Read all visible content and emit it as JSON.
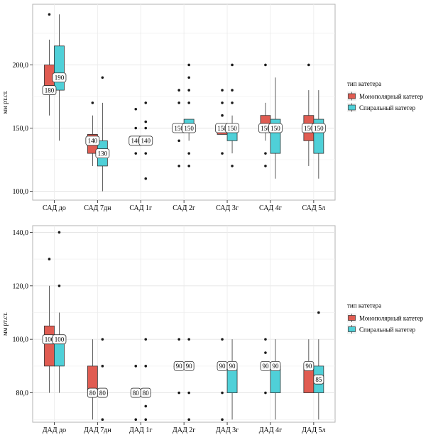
{
  "chart_data": [
    {
      "type": "boxplot",
      "ylabel": "мм рт.ст.",
      "ylim": [
        93,
        248
      ],
      "yticks": [
        100,
        150,
        200
      ],
      "tick_labels": [
        "100,0",
        "150,0",
        "200,0"
      ],
      "categories": [
        "САД до",
        "САД 7дн",
        "САД 1г",
        "САД 2г",
        "САД 3г",
        "САД 4г",
        "САД 5л"
      ],
      "legend": {
        "title": "тип катетера",
        "position": "right"
      },
      "grid": true,
      "series": [
        {
          "name": "Монополярный катетер",
          "color": "#e05c52",
          "boxes": [
            {
              "q1": 180,
              "median": 180,
              "q3": 200,
              "lo": 160,
              "hi": 220,
              "label": "180",
              "outliers": [
                240
              ]
            },
            {
              "q1": 130,
              "median": 140,
              "q3": 145,
              "lo": 120,
              "hi": 160,
              "label": "140",
              "outliers": [
                170
              ]
            },
            {
              "q1": 140,
              "median": 140,
              "q3": 140,
              "lo": 140,
              "hi": 140,
              "label": "140",
              "outliers": [
                130,
                150,
                165
              ]
            },
            {
              "q1": 150,
              "median": 150,
              "q3": 150,
              "lo": 150,
              "hi": 150,
              "label": "150",
              "outliers": [
                120,
                140,
                170,
                180
              ]
            },
            {
              "q1": 145,
              "median": 150,
              "q3": 150,
              "lo": 145,
              "hi": 150,
              "label": "150",
              "outliers": [
                130,
                160,
                170,
                180
              ]
            },
            {
              "q1": 150,
              "median": 150,
              "q3": 160,
              "lo": 140,
              "hi": 170,
              "label": "150",
              "outliers": [
                120,
                130,
                200
              ]
            },
            {
              "q1": 140,
              "median": 150,
              "q3": 160,
              "lo": 120,
              "hi": 180,
              "label": "150",
              "outliers": [
                200
              ]
            }
          ]
        },
        {
          "name": "Спиральный катетер",
          "color": "#4fd0d8",
          "boxes": [
            {
              "q1": 180,
              "median": 190,
              "q3": 215,
              "lo": 140,
              "hi": 240,
              "label": "190",
              "outliers": []
            },
            {
              "q1": 120,
              "median": 130,
              "q3": 140,
              "lo": 100,
              "hi": 170,
              "label": "130",
              "outliers": [
                190
              ]
            },
            {
              "q1": 140,
              "median": 140,
              "q3": 140,
              "lo": 140,
              "hi": 140,
              "label": "140",
              "outliers": [
                110,
                130,
                150,
                155,
                170
              ]
            },
            {
              "q1": 150,
              "median": 150,
              "q3": 157,
              "lo": 140,
              "hi": 157,
              "label": "150",
              "outliers": [
                120,
                130,
                170,
                180,
                190,
                200
              ]
            },
            {
              "q1": 140,
              "median": 150,
              "q3": 150,
              "lo": 130,
              "hi": 160,
              "label": "150",
              "outliers": [
                120,
                170,
                180,
                200
              ]
            },
            {
              "q1": 130,
              "median": 150,
              "q3": 157,
              "lo": 110,
              "hi": 190,
              "label": "150",
              "outliers": []
            },
            {
              "q1": 130,
              "median": 150,
              "q3": 157,
              "lo": 110,
              "hi": 180,
              "label": "150",
              "outliers": []
            }
          ]
        }
      ]
    },
    {
      "type": "boxplot",
      "ylabel": "мм рт.ст.",
      "ylim": [
        69,
        142.5
      ],
      "yticks": [
        80,
        100,
        120,
        140
      ],
      "tick_labels": [
        "80,0",
        "100,0",
        "120,0",
        "140,0"
      ],
      "categories": [
        "ДАД до",
        "ДАД 7дн",
        "ДАД 1г",
        "ДАД 2г",
        "ДАД 3г",
        "ДАД 4г",
        "ДАД 5л"
      ],
      "legend": {
        "title": "тип катетера",
        "position": "right"
      },
      "grid": true,
      "series": [
        {
          "name": "Монополярный катетер",
          "color": "#e05c52",
          "boxes": [
            {
              "q1": 90,
              "median": 100,
              "q3": 105,
              "lo": 80,
              "hi": 120,
              "label": "100",
              "outliers": [
                130
              ]
            },
            {
              "q1": 80,
              "median": 80,
              "q3": 90,
              "lo": 70,
              "hi": 100,
              "label": "80",
              "outliers": []
            },
            {
              "q1": 80,
              "median": 80,
              "q3": 80,
              "lo": 80,
              "hi": 80,
              "label": "80",
              "outliers": [
                70,
                90
              ]
            },
            {
              "q1": 90,
              "median": 90,
              "q3": 90,
              "lo": 90,
              "hi": 90,
              "label": "90",
              "outliers": [
                80,
                100
              ]
            },
            {
              "q1": 90,
              "median": 90,
              "q3": 90,
              "lo": 90,
              "hi": 90,
              "label": "90",
              "outliers": [
                70,
                80,
                100
              ]
            },
            {
              "q1": 90,
              "median": 90,
              "q3": 90,
              "lo": 90,
              "hi": 90,
              "label": "90",
              "outliers": [
                80,
                95,
                100
              ]
            },
            {
              "q1": 80,
              "median": 90,
              "q3": 90,
              "lo": 80,
              "hi": 100,
              "label": "90",
              "outliers": []
            }
          ]
        },
        {
          "name": "Спиральный катетер",
          "color": "#4fd0d8",
          "boxes": [
            {
              "q1": 90,
              "median": 100,
              "q3": 100,
              "lo": 80,
              "hi": 110,
              "label": "100",
              "outliers": [
                120,
                140
              ]
            },
            {
              "q1": 80,
              "median": 80,
              "q3": 80,
              "lo": 80,
              "hi": 80,
              "label": "80",
              "outliers": [
                70,
                90,
                100
              ]
            },
            {
              "q1": 80,
              "median": 80,
              "q3": 80,
              "lo": 80,
              "hi": 80,
              "label": "80",
              "outliers": [
                70,
                75,
                90,
                100
              ]
            },
            {
              "q1": 90,
              "median": 90,
              "q3": 90,
              "lo": 90,
              "hi": 90,
              "label": "90",
              "outliers": [
                70,
                80,
                100
              ]
            },
            {
              "q1": 80,
              "median": 90,
              "q3": 90,
              "lo": 70,
              "hi": 100,
              "label": "90",
              "outliers": []
            },
            {
              "q1": 80,
              "median": 90,
              "q3": 90,
              "lo": 70,
              "hi": 100,
              "label": "90",
              "outliers": []
            },
            {
              "q1": 80,
              "median": 85,
              "q3": 90,
              "lo": 70,
              "hi": 100,
              "label": "85",
              "outliers": [
                110
              ]
            }
          ]
        }
      ]
    }
  ]
}
